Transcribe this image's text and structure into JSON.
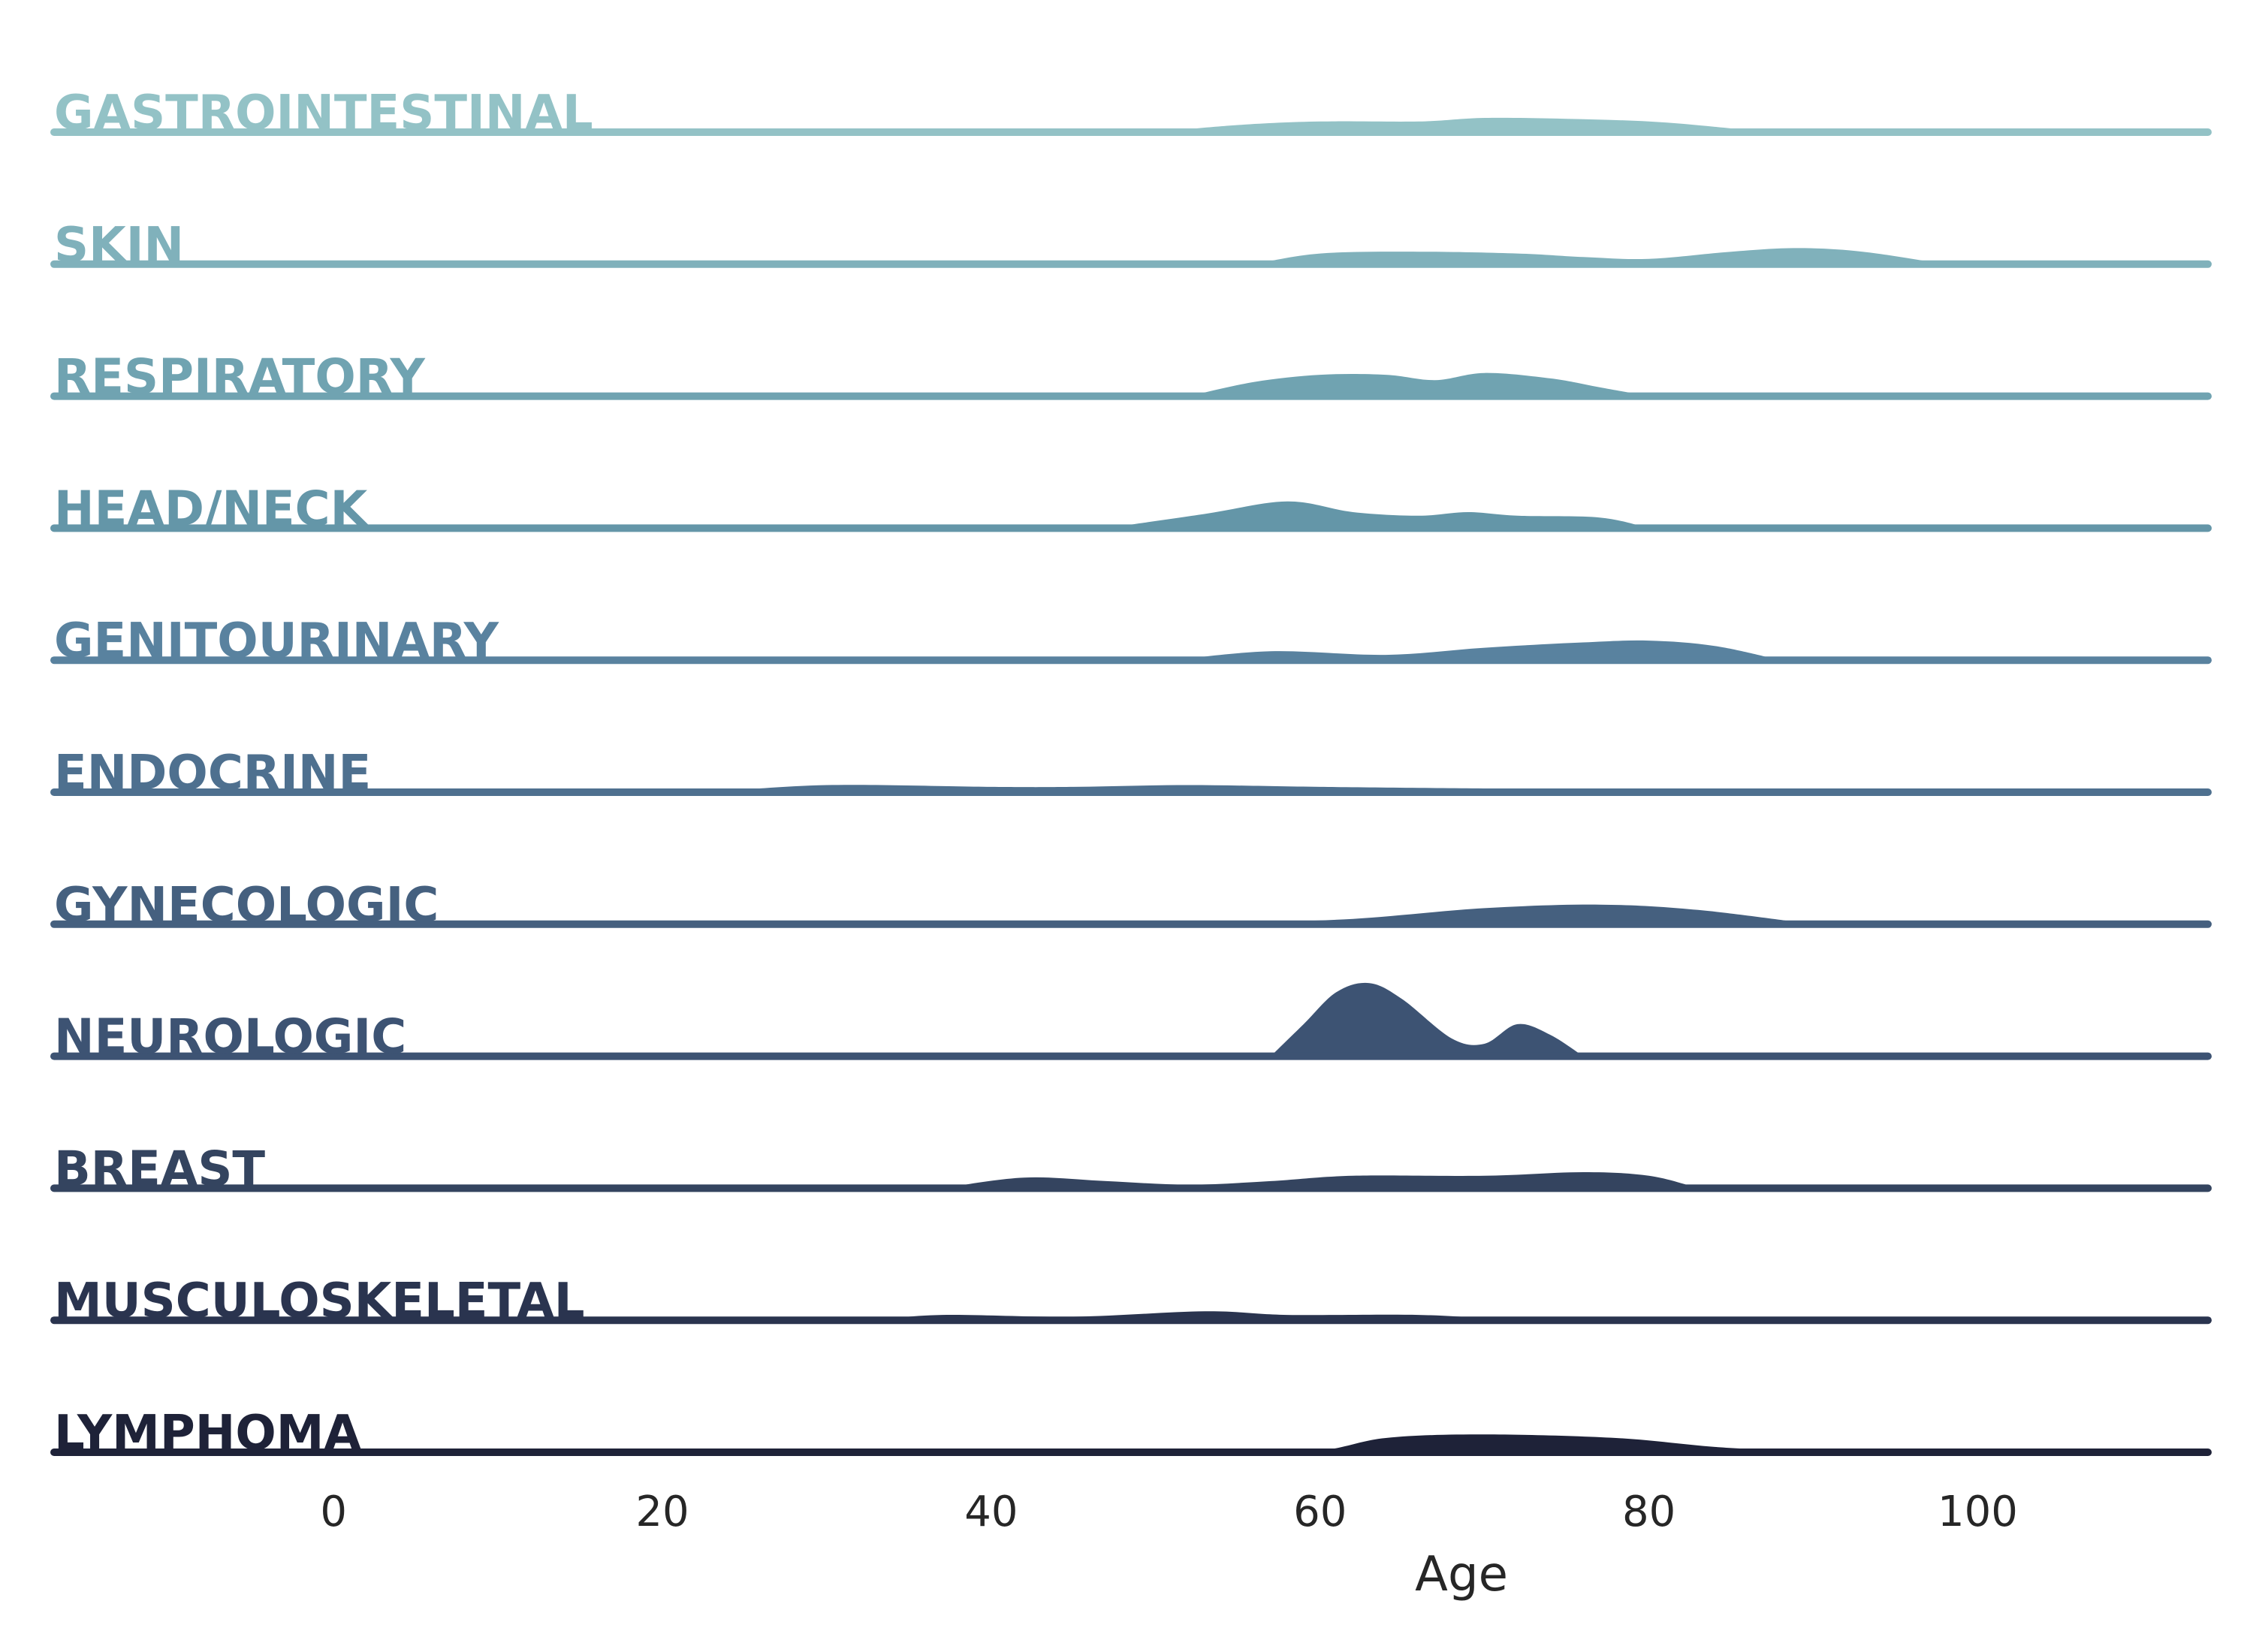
{
  "chart_data": {
    "type": "area",
    "subtype": "ridgeline",
    "xlabel": "Age",
    "xlim": [
      -17,
      114
    ],
    "xticks": [
      0,
      20,
      40,
      60,
      80,
      100
    ],
    "grid": false,
    "legend": "none",
    "density_scale": 0.04,
    "series": [
      {
        "name": "GASTROINTESTINAL",
        "color": "#93c2c6",
        "points": [
          [
            50,
            0
          ],
          [
            55,
            0.004
          ],
          [
            60,
            0.006
          ],
          [
            66,
            0.006
          ],
          [
            70,
            0.008
          ],
          [
            75,
            0.0075
          ],
          [
            80,
            0.006
          ],
          [
            84,
            0.003
          ],
          [
            87,
            0
          ]
        ]
      },
      {
        "name": "SKIN",
        "color": "#80b1bb",
        "points": [
          [
            56,
            0
          ],
          [
            60,
            0.006
          ],
          [
            66,
            0.007
          ],
          [
            72,
            0.006
          ],
          [
            76,
            0.004
          ],
          [
            80,
            0.003
          ],
          [
            85,
            0.007
          ],
          [
            89,
            0.009
          ],
          [
            93,
            0.007
          ],
          [
            98,
            0
          ]
        ]
      },
      {
        "name": "RESPIRATORY",
        "color": "#70a3b1",
        "points": [
          [
            52,
            0
          ],
          [
            56,
            0.008
          ],
          [
            60,
            0.012
          ],
          [
            64,
            0.012
          ],
          [
            67,
            0.009
          ],
          [
            70,
            0.013
          ],
          [
            74,
            0.01
          ],
          [
            77,
            0.005
          ],
          [
            80,
            0
          ]
        ]
      },
      {
        "name": "HEAD/NECK",
        "color": "#6496a8",
        "points": [
          [
            47,
            0
          ],
          [
            53,
            0.008
          ],
          [
            58,
            0.015
          ],
          [
            62,
            0.009
          ],
          [
            66,
            0.007
          ],
          [
            69,
            0.009
          ],
          [
            72,
            0.007
          ],
          [
            77,
            0.006
          ],
          [
            80,
            0
          ]
        ]
      },
      {
        "name": "GENITOURINARY",
        "color": "#59829f",
        "points": [
          [
            51,
            0
          ],
          [
            57,
            0.005
          ],
          [
            64,
            0.003
          ],
          [
            70,
            0.007
          ],
          [
            76,
            0.01
          ],
          [
            80,
            0.011
          ],
          [
            84,
            0.008
          ],
          [
            88,
            0
          ]
        ]
      },
      {
        "name": "ENDOCRINE",
        "color": "#4e708f",
        "points": [
          [
            23,
            0
          ],
          [
            30,
            0.004
          ],
          [
            40,
            0.003
          ],
          [
            45,
            0.003
          ],
          [
            52,
            0.004
          ],
          [
            60,
            0.003
          ],
          [
            72,
            0.002
          ],
          [
            78,
            0.002
          ],
          [
            80,
            0
          ]
        ]
      },
      {
        "name": "GYNECOLOGIC",
        "color": "#45607f",
        "points": [
          [
            48,
            0
          ],
          [
            55,
            0.001
          ],
          [
            62,
            0.003
          ],
          [
            70,
            0.009
          ],
          [
            77,
            0.011
          ],
          [
            83,
            0.008
          ],
          [
            90,
            0
          ]
        ]
      },
      {
        "name": "NEUROLOGIC",
        "color": "#3d5373",
        "points": [
          [
            57,
            0
          ],
          [
            59,
            0.018
          ],
          [
            61,
            0.036
          ],
          [
            63,
            0.041
          ],
          [
            65,
            0.032
          ],
          [
            68,
            0.01
          ],
          [
            70,
            0.007
          ],
          [
            72,
            0.018
          ],
          [
            74,
            0.012
          ],
          [
            76,
            0
          ]
        ]
      },
      {
        "name": "BREAST",
        "color": "#34445f",
        "points": [
          [
            37,
            0
          ],
          [
            42,
            0.006
          ],
          [
            47,
            0.004
          ],
          [
            52,
            0.002
          ],
          [
            57,
            0.004
          ],
          [
            62,
            0.007
          ],
          [
            70,
            0.007
          ],
          [
            76,
            0.009
          ],
          [
            80,
            0.007
          ],
          [
            83,
            0
          ]
        ]
      },
      {
        "name": "MUSCULOSKELETAL",
        "color": "#2a344f",
        "points": [
          [
            33,
            0
          ],
          [
            37,
            0.003
          ],
          [
            45,
            0.002
          ],
          [
            53,
            0.005
          ],
          [
            58,
            0.003
          ],
          [
            66,
            0.003
          ],
          [
            72,
            0.0005
          ],
          [
            80,
            0.001
          ],
          [
            84,
            0
          ]
        ]
      },
      {
        "name": "LYMPHOMA",
        "color": "#1e2238",
        "points": [
          [
            41,
            0
          ],
          [
            45,
            0.002
          ],
          [
            49,
            0
          ],
          [
            59,
            0
          ],
          [
            64,
            0.008
          ],
          [
            70,
            0.01
          ],
          [
            78,
            0.008
          ],
          [
            84,
            0.003
          ],
          [
            90,
            0
          ]
        ]
      }
    ]
  }
}
